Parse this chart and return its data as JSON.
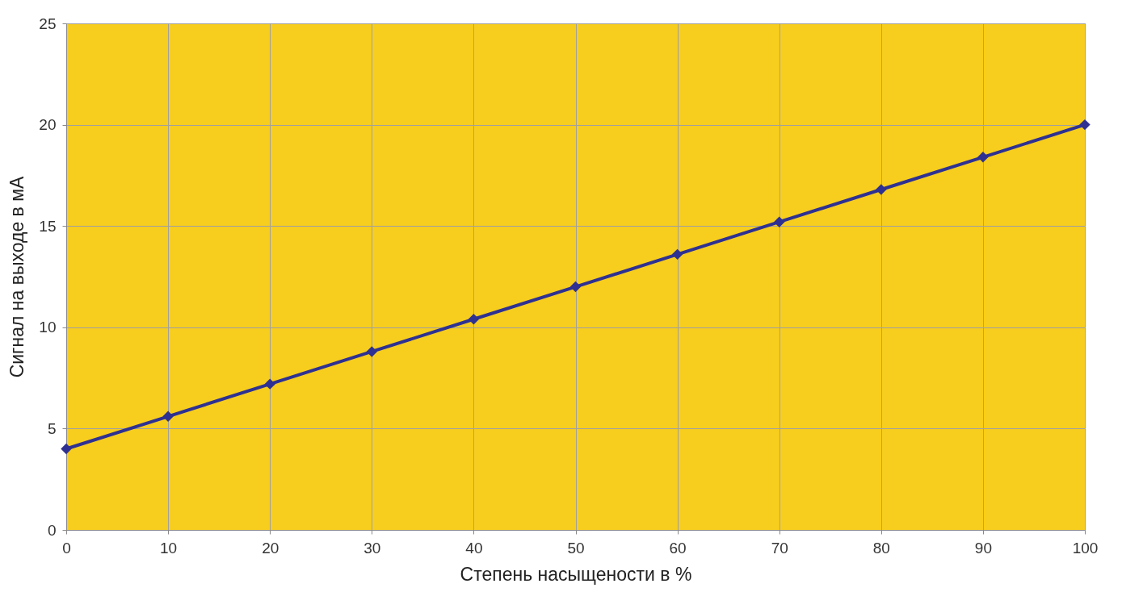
{
  "chart_data": {
    "type": "line",
    "xlabel": "Степень насыщености в %",
    "ylabel": "Сигнал на выходе в мА",
    "x": [
      0,
      10,
      20,
      30,
      40,
      50,
      60,
      70,
      80,
      90,
      100
    ],
    "series": [
      {
        "color": "#2e3192",
        "values": [
          4,
          5.6,
          7.2,
          8.8,
          10.4,
          12,
          13.6,
          15.2,
          16.8,
          18.4,
          20
        ]
      }
    ],
    "xlim": [
      0,
      100
    ],
    "xticks": [
      0,
      10,
      20,
      30,
      40,
      50,
      60,
      70,
      80,
      90,
      100
    ],
    "ylim": [
      0,
      25
    ],
    "yticks": [
      0,
      5,
      10,
      15,
      20,
      25
    ],
    "grid": true,
    "marker": "diamond",
    "line_style": "solid"
  }
}
